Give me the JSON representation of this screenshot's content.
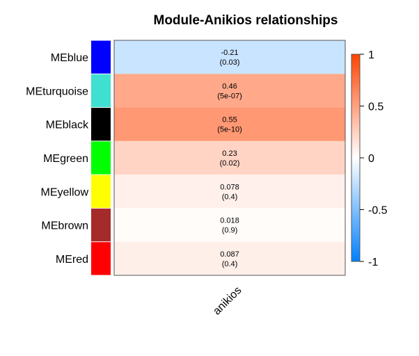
{
  "chart_data": {
    "type": "heatmap",
    "title": "Module-Anikios relationships",
    "columns": [
      "anikios"
    ],
    "rows": [
      {
        "label": "MEblue",
        "swatch": "#0000ff",
        "value": -0.21,
        "value_label": "-0.21",
        "p_label": "(0.03)"
      },
      {
        "label": "MEturquoise",
        "swatch": "#40e0d0",
        "value": 0.46,
        "value_label": "0.46",
        "p_label": "(5e-07)"
      },
      {
        "label": "MEblack",
        "swatch": "#000000",
        "value": 0.55,
        "value_label": "0.55",
        "p_label": "(5e-10)"
      },
      {
        "label": "MEgreen",
        "swatch": "#00ff00",
        "value": 0.23,
        "value_label": "0.23",
        "p_label": "(0.02)"
      },
      {
        "label": "MEyellow",
        "swatch": "#ffff00",
        "value": 0.078,
        "value_label": "0.078",
        "p_label": "(0.4)"
      },
      {
        "label": "MEbrown",
        "swatch": "#a52a2a",
        "value": 0.018,
        "value_label": "0.018",
        "p_label": "(0.9)"
      },
      {
        "label": "MEred",
        "swatch": "#ff0000",
        "value": 0.087,
        "value_label": "0.087",
        "p_label": "(0.4)"
      }
    ],
    "color_scale": {
      "min": -1,
      "max": 1,
      "low_color": "#0080ff",
      "mid_color": "#ffffff",
      "high_color": "#ff4400"
    },
    "legend": {
      "ticks": [
        1,
        0.5,
        0,
        -0.5,
        -1
      ],
      "tick_labels": [
        "1",
        "0.5",
        "0",
        "-0.5",
        "-1"
      ]
    }
  }
}
